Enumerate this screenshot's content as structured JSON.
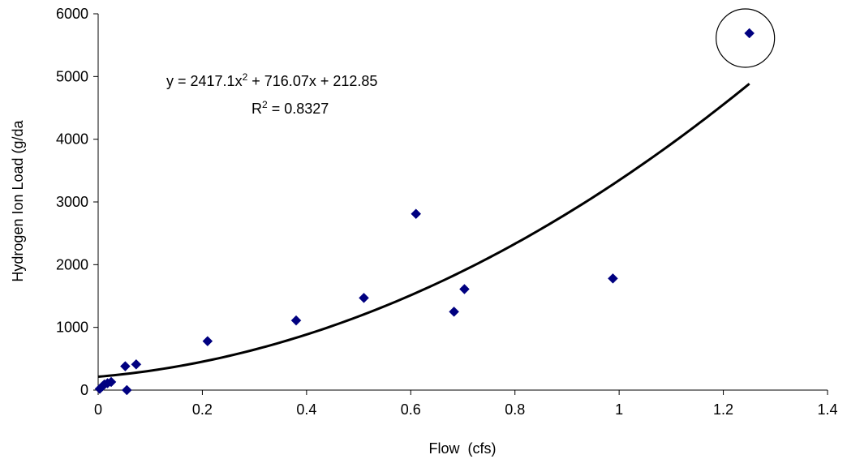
{
  "chart_data": {
    "type": "scatter",
    "title": "",
    "xlabel": "Flow  (cfs)",
    "ylabel": "Hydrogen Ion Load (g/da",
    "xlim": [
      0,
      1.4
    ],
    "ylim": [
      0,
      6000
    ],
    "x_ticks": [
      "0",
      "0.2",
      "0.4",
      "0.6",
      "0.8",
      "1",
      "1.2",
      "1.4"
    ],
    "y_ticks": [
      "0",
      "1000",
      "2000",
      "3000",
      "4000",
      "5000",
      "6000"
    ],
    "grid": false,
    "legend": "none",
    "series": [
      {
        "marker": "diamond",
        "color": "#000080",
        "points": [
          {
            "x": 0.003,
            "y": 20
          },
          {
            "x": 0.008,
            "y": 60
          },
          {
            "x": 0.012,
            "y": 90
          },
          {
            "x": 0.018,
            "y": 110
          },
          {
            "x": 0.025,
            "y": 130
          },
          {
            "x": 0.052,
            "y": 380
          },
          {
            "x": 0.055,
            "y": 0
          },
          {
            "x": 0.073,
            "y": 410
          },
          {
            "x": 0.21,
            "y": 780
          },
          {
            "x": 0.38,
            "y": 1110
          },
          {
            "x": 0.51,
            "y": 1470
          },
          {
            "x": 0.61,
            "y": 2810
          },
          {
            "x": 0.683,
            "y": 1250
          },
          {
            "x": 0.703,
            "y": 1610
          },
          {
            "x": 0.988,
            "y": 1780
          },
          {
            "x": 1.25,
            "y": 5690
          }
        ]
      }
    ],
    "trendline": {
      "type": "polynomial",
      "coefficients": [
        2417.1,
        716.07,
        212.85
      ],
      "x_range": [
        0,
        1.25
      ],
      "color": "#000000",
      "equation_text": {
        "prefix": "y = 2417.1x",
        "superscript": "2",
        "suffix": " + 716.07x + 212.85"
      },
      "r2_text": {
        "prefix": "R",
        "superscript": "2",
        "suffix": " = 0.8327"
      }
    },
    "annotations": [
      {
        "shape": "circle",
        "target_x": 1.25,
        "target_y": 5690,
        "note": "outlier highlighted"
      }
    ]
  }
}
